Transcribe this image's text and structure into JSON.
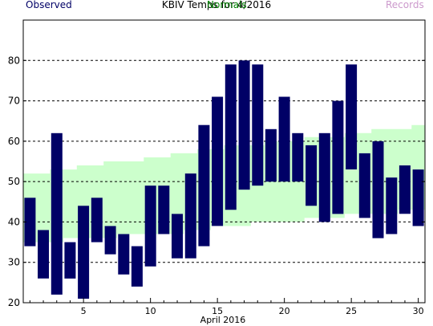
{
  "chart_data": {
    "type": "bar",
    "title": "KBIV Temps for 4/2016",
    "xlabel": "April 2016",
    "ylabel": "",
    "ylim": [
      20,
      90
    ],
    "xlim": [
      0.5,
      30.5
    ],
    "yticks": [
      20,
      30,
      40,
      50,
      60,
      70,
      80
    ],
    "xticks": [
      5,
      10,
      15,
      20,
      25,
      30
    ],
    "grid": true,
    "legend": [
      {
        "name": "Observed",
        "color": "#000066"
      },
      {
        "name": "Normals",
        "color": "#008000"
      },
      {
        "name": "Records",
        "color": "#cc99cc"
      }
    ],
    "days": [
      1,
      2,
      3,
      4,
      5,
      6,
      7,
      8,
      9,
      10,
      11,
      12,
      13,
      14,
      15,
      16,
      17,
      18,
      19,
      20,
      21,
      22,
      23,
      24,
      25,
      26,
      27,
      28,
      29,
      30
    ],
    "normals": {
      "high": [
        52,
        52,
        53,
        53,
        54,
        54,
        55,
        55,
        55,
        56,
        56,
        57,
        57,
        58,
        58,
        59,
        59,
        59,
        60,
        60,
        60,
        61,
        61,
        61,
        62,
        62,
        63,
        63,
        63,
        64
      ],
      "low": [
        35,
        35,
        35,
        36,
        36,
        36,
        36,
        37,
        37,
        37,
        37,
        37,
        38,
        38,
        39,
        39,
        39,
        40,
        40,
        40,
        40,
        41,
        41,
        41,
        42,
        42,
        42,
        42,
        43,
        43
      ]
    },
    "series": [
      {
        "name": "Observed",
        "high": [
          46,
          38,
          62,
          35,
          44,
          46,
          39,
          37,
          34,
          49,
          49,
          42,
          52,
          64,
          71,
          79,
          80,
          79,
          63,
          71,
          62,
          59,
          62,
          70,
          79,
          57,
          60,
          51,
          54,
          53
        ],
        "low": [
          34,
          26,
          22,
          26,
          21,
          35,
          32,
          27,
          24,
          29,
          37,
          31,
          31,
          34,
          39,
          43,
          48,
          49,
          50,
          50,
          50,
          44,
          40,
          42,
          53,
          41,
          36,
          37,
          42,
          39
        ]
      }
    ]
  }
}
